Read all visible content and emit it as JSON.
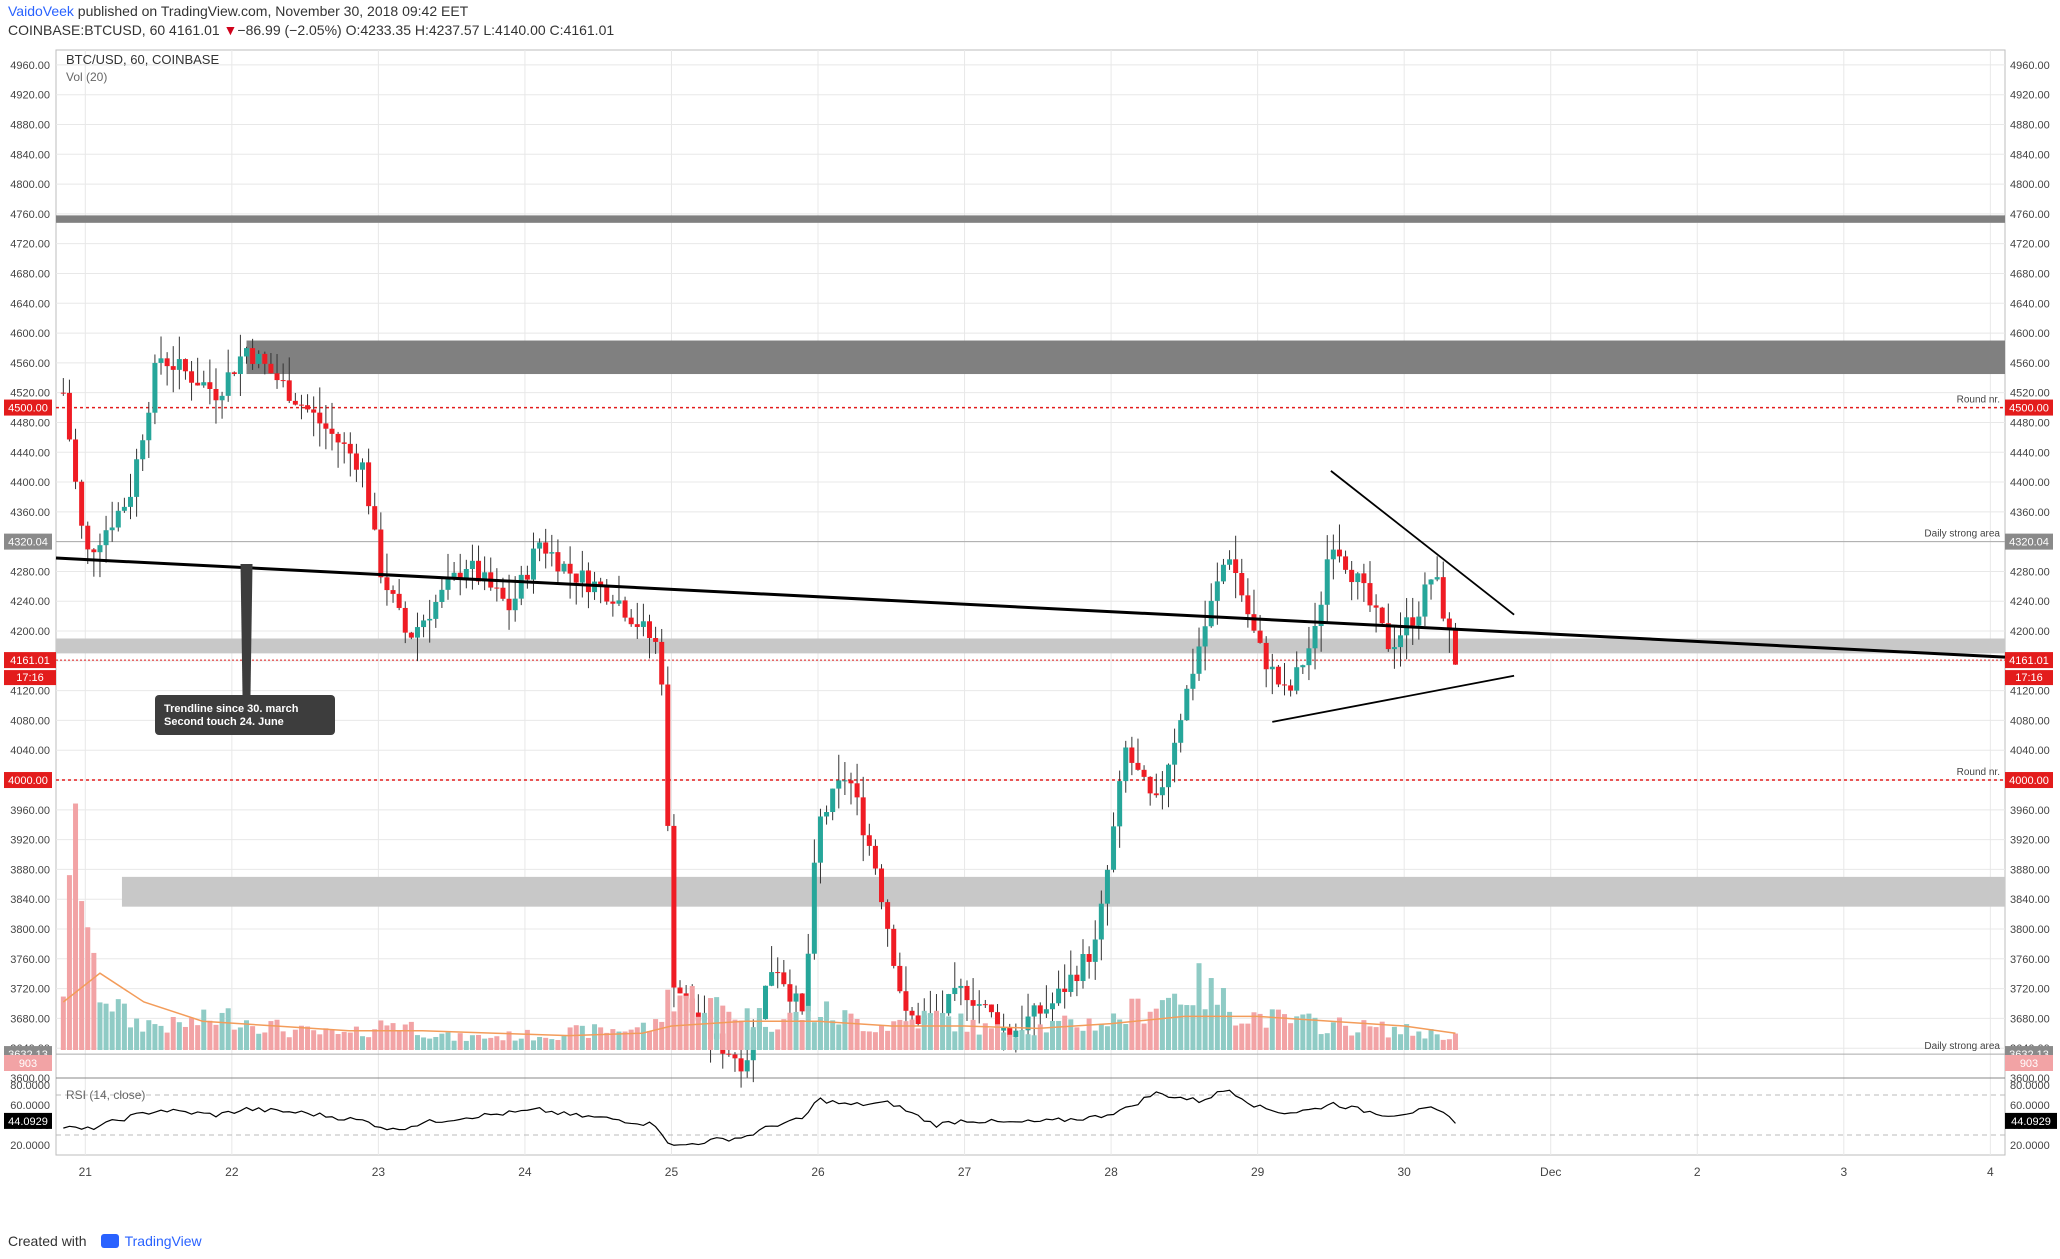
{
  "header": {
    "author": "VaidoVeek",
    "published": " published on TradingView.com, November 30, 2018 09:42 EET",
    "symbol": "COINBASE:BTCUSD, 60",
    "last": "4161.01",
    "arrow": "▼",
    "change": "−86.99 (−2.05%)",
    "ohlc": "O:4233.35 H:4237.57 L:4140.00 C:4161.01"
  },
  "footer": {
    "created_with": "Created with",
    "brand": "TradingView"
  },
  "chart_data": {
    "type": "candlestick",
    "title": "BTC/USD, 60, COINBASE",
    "volume_label": "Vol (20)",
    "rsi_label": "RSI (14, close)",
    "ylim": [
      3600,
      4980
    ],
    "y_ticks": [
      3600,
      3640,
      3680,
      3720,
      3760,
      3800,
      3840,
      3880,
      3920,
      3960,
      4000,
      4040,
      4080,
      4120,
      4160,
      4200,
      4240,
      4280,
      4320,
      4360,
      4400,
      4440,
      4480,
      4520,
      4560,
      4600,
      4640,
      4680,
      4720,
      4760,
      4800,
      4840,
      4880,
      4920,
      4960
    ],
    "rsi_ticks": [
      20,
      40,
      60,
      80
    ],
    "rsi_levels": [
      30,
      70
    ],
    "x_ticks": [
      "21",
      "22",
      "23",
      "24",
      "25",
      "26",
      "27",
      "28",
      "29",
      "30",
      "Dec",
      "2",
      "3",
      "4"
    ],
    "x_tick_days": [
      21,
      22,
      23,
      24,
      25,
      26,
      27,
      28,
      29,
      30,
      31,
      32,
      33,
      34
    ],
    "x_range": [
      20.8,
      34.1
    ],
    "price_path_days": [
      20.85,
      21.0,
      21.3,
      21.5,
      21.9,
      22.1,
      22.5,
      22.9,
      23.0,
      23.2,
      23.6,
      23.9,
      24.1,
      24.3,
      24.6,
      24.9,
      24.95,
      25.0,
      25.1,
      25.3,
      25.5,
      25.7,
      25.9,
      26.0,
      26.2,
      26.4,
      26.6,
      26.8,
      27.0,
      27.3,
      27.6,
      27.9,
      28.1,
      28.3,
      28.6,
      28.8,
      29.0,
      29.2,
      29.4,
      29.5,
      29.7,
      29.9,
      30.1,
      30.2,
      30.35
    ],
    "price_path_vals": [
      4520,
      4300,
      4380,
      4570,
      4520,
      4580,
      4500,
      4420,
      4290,
      4190,
      4290,
      4230,
      4320,
      4280,
      4250,
      4180,
      4120,
      3740,
      3700,
      3650,
      3620,
      3760,
      3680,
      3940,
      4010,
      3880,
      3680,
      3680,
      3720,
      3660,
      3700,
      3780,
      4040,
      3960,
      4180,
      4310,
      4180,
      4110,
      4200,
      4330,
      4260,
      4180,
      4230,
      4280,
      4161
    ],
    "volume_path_days": [
      20.85,
      20.95,
      21.05,
      21.3,
      21.6,
      22.0,
      22.4,
      22.8,
      23.1,
      23.5,
      24.0,
      24.5,
      24.9,
      25.0,
      25.3,
      25.7,
      26.0,
      26.4,
      26.8,
      27.2,
      27.6,
      28.0,
      28.3,
      28.6,
      28.9,
      29.2,
      29.6,
      30.0,
      30.35
    ],
    "volume_path_vals": [
      28,
      95,
      30,
      12,
      10,
      14,
      8,
      6,
      12,
      5,
      6,
      8,
      10,
      25,
      18,
      12,
      16,
      10,
      14,
      8,
      10,
      12,
      20,
      26,
      15,
      12,
      10,
      8,
      6
    ],
    "volume_ma_days": [
      20.85,
      21.1,
      21.4,
      21.8,
      22.3,
      22.8,
      23.3,
      23.8,
      24.3,
      24.8,
      25.0,
      25.5,
      26.0,
      26.5,
      27.0,
      27.5,
      28.0,
      28.5,
      29.0,
      29.5,
      30.0,
      30.35
    ],
    "volume_ma_vals": [
      20,
      32,
      20,
      12,
      10,
      8,
      8,
      7,
      6,
      7,
      10,
      12,
      12,
      10,
      10,
      9,
      11,
      14,
      14,
      12,
      10,
      7
    ],
    "rsi_path_days": [
      20.85,
      21.0,
      21.3,
      21.5,
      21.9,
      22.1,
      22.5,
      22.9,
      23.1,
      23.3,
      23.6,
      23.9,
      24.1,
      24.3,
      24.6,
      24.9,
      25.0,
      25.3,
      25.5,
      25.7,
      25.9,
      26.0,
      26.2,
      26.5,
      26.8,
      27.0,
      27.3,
      27.6,
      27.9,
      28.1,
      28.3,
      28.6,
      28.8,
      29.0,
      29.2,
      29.4,
      29.5,
      29.7,
      29.9,
      30.1,
      30.2,
      30.35
    ],
    "rsi_path_vals": [
      38,
      35,
      48,
      55,
      50,
      56,
      52,
      44,
      35,
      42,
      48,
      52,
      55,
      50,
      46,
      40,
      18,
      25,
      28,
      40,
      46,
      66,
      60,
      62,
      40,
      45,
      42,
      44,
      48,
      56,
      72,
      64,
      76,
      58,
      52,
      56,
      62,
      55,
      50,
      54,
      56,
      44
    ],
    "levels": [
      {
        "name": "Round nr.",
        "value": 4500.0,
        "badge": "4500.00"
      },
      {
        "name": "Round nr.",
        "value": 4000.0,
        "badge": "4000.00"
      },
      {
        "name": "Daily strong area",
        "value": 4320.04,
        "badge": "4320.04"
      },
      {
        "name": "Daily strong area",
        "value": 3632.13,
        "badge": "3632.13"
      }
    ],
    "zones": [
      {
        "from": 4748,
        "to": 4758,
        "x_start": 20.8
      },
      {
        "from": 4545,
        "to": 4590,
        "x_start": 22.1
      },
      {
        "from": 4170,
        "to": 4190,
        "x_start": 20.8
      },
      {
        "from": 3830,
        "to": 3870,
        "x_start": 21.25
      }
    ],
    "trendline": {
      "from": [
        20.8,
        4298
      ],
      "to": [
        34.1,
        4165
      ]
    },
    "triangle_upper": {
      "from": [
        29.5,
        4415
      ],
      "to": [
        30.75,
        4222
      ]
    },
    "triangle_lower": {
      "from": [
        29.1,
        4078
      ],
      "to": [
        30.75,
        4140
      ]
    },
    "last_price": {
      "value": 4161.01,
      "badge": "4161.01",
      "countdown": "17:16"
    },
    "last_volume": {
      "badge": "903"
    },
    "last_rsi": {
      "value": 44.0929,
      "badge": "44.0929"
    },
    "annotation": {
      "text_lines": [
        "Trendline since 30. march",
        "Second touch 24. June"
      ],
      "arrow_day": 22.1,
      "arrow_price": 4290
    },
    "colors": {
      "up": "#26a69a",
      "down": "#ef1c24",
      "up_vol": "#8fcbc5",
      "down_vol": "#f2a3a5",
      "grid": "#e8e8e8",
      "round": "#e31c1c",
      "zone_dark": "#808080",
      "zone_light": "#c8c8c8"
    }
  }
}
